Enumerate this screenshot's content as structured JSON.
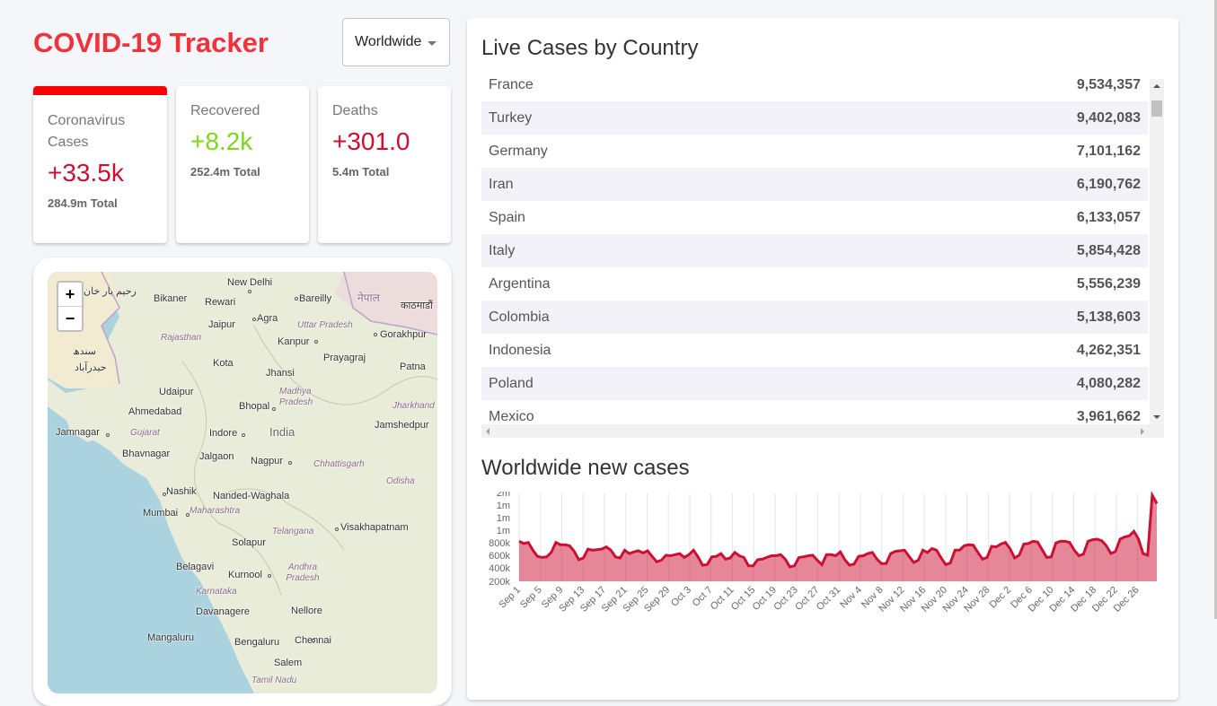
{
  "app": {
    "title": "COVID-19 Tracker"
  },
  "country_select": {
    "value": "Worldwide"
  },
  "stats": [
    {
      "label": "Coronavirus Cases",
      "value": "+33.5k",
      "total": "284.9m Total",
      "color": "#cc1034"
    },
    {
      "label": "Recovered",
      "value": "+8.2k",
      "total": "252.4m Total",
      "color": "#7dd71d"
    },
    {
      "label": "Deaths",
      "value": "+301.0",
      "total": "5.4m Total",
      "color": "#cc1034"
    }
  ],
  "map": {
    "zoom_in": "+",
    "zoom_out": "−",
    "labels": [
      {
        "text": "New Delhi"
      },
      {
        "text": "Bikaner"
      },
      {
        "text": "Rewari"
      },
      {
        "text": "Bareilly"
      },
      {
        "text": "नेपाल"
      },
      {
        "text": "काठमाडौं"
      },
      {
        "text": "Jaipur"
      },
      {
        "text": "Agra"
      },
      {
        "text": "Uttar Pradesh"
      },
      {
        "text": "Rajasthan"
      },
      {
        "text": "Kanpur"
      },
      {
        "text": "Gorakhpur"
      },
      {
        "text": "Kota"
      },
      {
        "text": "Prayagraj"
      },
      {
        "text": "Jhansi"
      },
      {
        "text": "Patna"
      },
      {
        "text": "Udaipur"
      },
      {
        "text": "Madhya Pradesh"
      },
      {
        "text": "Bhopal"
      },
      {
        "text": "Jharkhand"
      },
      {
        "text": "Ahmedabad"
      },
      {
        "text": "Jamshedpur"
      },
      {
        "text": "Jamnagar"
      },
      {
        "text": "Gujarat"
      },
      {
        "text": "Indore"
      },
      {
        "text": "India"
      },
      {
        "text": "Bhavnagar"
      },
      {
        "text": "Jalgaon"
      },
      {
        "text": "Nagpur"
      },
      {
        "text": "Chhattisgarh"
      },
      {
        "text": "Odisha"
      },
      {
        "text": "Nashik"
      },
      {
        "text": "Nanded-Waghala"
      },
      {
        "text": "Mumbai"
      },
      {
        "text": "Maharashtra"
      },
      {
        "text": "Visakhapatnam"
      },
      {
        "text": "Telangana"
      },
      {
        "text": "Solapur"
      },
      {
        "text": "Belagavi"
      },
      {
        "text": "Kurnool"
      },
      {
        "text": "Andhra Pradesh"
      },
      {
        "text": "Karnataka"
      },
      {
        "text": "Davanagere"
      },
      {
        "text": "Nellore"
      },
      {
        "text": "Mangaluru"
      },
      {
        "text": "Bengaluru"
      },
      {
        "text": "Chennai"
      },
      {
        "text": "Salem"
      },
      {
        "text": "Tamil Nadu"
      },
      {
        "text": "رحیم یار خان"
      },
      {
        "text": "حیدرآباد"
      },
      {
        "text": "سندھ"
      }
    ]
  },
  "live_cases": {
    "title": "Live Cases by Country",
    "rows": [
      {
        "country": "France",
        "cases": "9,534,357"
      },
      {
        "country": "Turkey",
        "cases": "9,402,083"
      },
      {
        "country": "Germany",
        "cases": "7,101,162"
      },
      {
        "country": "Iran",
        "cases": "6,190,762"
      },
      {
        "country": "Spain",
        "cases": "6,133,057"
      },
      {
        "country": "Italy",
        "cases": "5,854,428"
      },
      {
        "country": "Argentina",
        "cases": "5,556,239"
      },
      {
        "country": "Colombia",
        "cases": "5,138,603"
      },
      {
        "country": "Indonesia",
        "cases": "4,262,351"
      },
      {
        "country": "Poland",
        "cases": "4,080,282"
      },
      {
        "country": "Mexico",
        "cases": "3,961,662"
      }
    ]
  },
  "chart_title": "Worldwide new cases",
  "chart_data": {
    "type": "area",
    "title": "Worldwide new cases",
    "xlabel": "",
    "ylabel": "",
    "ylim": [
      0,
      2000000
    ],
    "ytick_labels": [
      "200k",
      "400k",
      "600k",
      "800k",
      "1m",
      "1m",
      "1m",
      "2m"
    ],
    "ytick_values": [
      200000,
      400000,
      600000,
      800000,
      1000000,
      1200000,
      1400000,
      1600000
    ],
    "xtick_labels": [
      "Sep 1",
      "Sep 5",
      "Sep 9",
      "Sep 13",
      "Sep 17",
      "Sep 21",
      "Sep 25",
      "Sep 29",
      "Oct 3",
      "Oct 7",
      "Oct 11",
      "Oct 15",
      "Oct 19",
      "Oct 23",
      "Oct 27",
      "Oct 31",
      "Nov 4",
      "Nov 8",
      "Nov 12",
      "Nov 16",
      "Nov 20",
      "Nov 24",
      "Nov 28",
      "Dec 2",
      "Dec 6",
      "Dec 10",
      "Dec 14",
      "Dec 18",
      "Dec 22",
      "Dec 26"
    ],
    "x_start": "Sep 1",
    "x_end": "Dec 29",
    "values": [
      720000,
      680000,
      700000,
      560000,
      450000,
      430000,
      440000,
      520000,
      700000,
      660000,
      660000,
      640000,
      540000,
      390000,
      420000,
      580000,
      560000,
      570000,
      580000,
      620000,
      560000,
      440000,
      420000,
      560000,
      500000,
      530000,
      550000,
      510000,
      550000,
      450000,
      350000,
      380000,
      470000,
      460000,
      480000,
      500000,
      430000,
      480000,
      560000,
      440000,
      290000,
      300000,
      440000,
      450000,
      500000,
      400000,
      420000,
      520000,
      460000,
      430000,
      280000,
      280000,
      390000,
      400000,
      430000,
      460000,
      460000,
      480000,
      400000,
      260000,
      280000,
      430000,
      440000,
      460000,
      470000,
      380000,
      300000,
      480000,
      480000,
      460000,
      530000,
      390000,
      290000,
      310000,
      450000,
      460000,
      500000,
      520000,
      400000,
      320000,
      320000,
      500000,
      540000,
      550000,
      560000,
      450000,
      340000,
      380000,
      560000,
      520000,
      590000,
      560000,
      420000,
      300000,
      330000,
      560000,
      560000,
      640000,
      660000,
      650000,
      520000,
      400000,
      430000,
      630000,
      620000,
      670000,
      700000,
      590000,
      420000,
      470000,
      670000,
      680000,
      720000,
      710000,
      570000,
      430000,
      440000,
      690000,
      720000,
      720000,
      700000,
      560000,
      460000,
      490000,
      720000,
      750000,
      760000,
      730000,
      640000,
      500000,
      540000,
      760000,
      800000,
      820000,
      900000,
      760000,
      500000,
      470000,
      1550000,
      1400000
    ]
  }
}
